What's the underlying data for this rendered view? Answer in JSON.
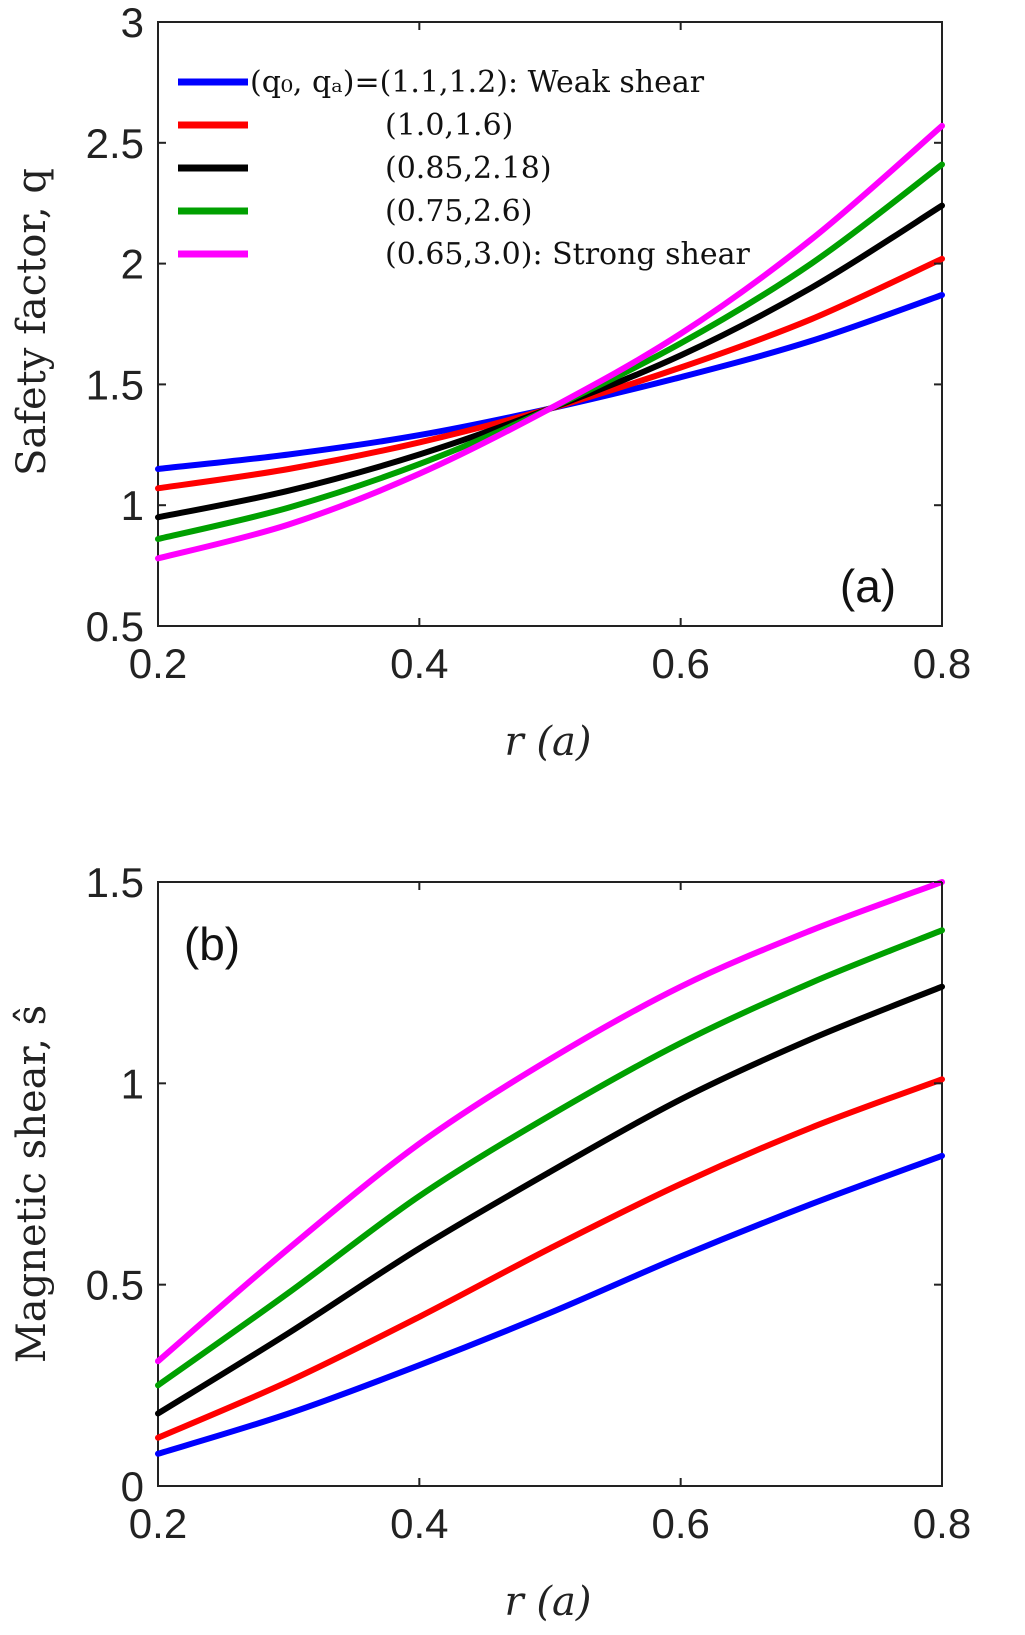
{
  "chart_data": [
    {
      "type": "line",
      "panel_label": "(a)",
      "ylabel": "Safety factor, q",
      "xlabel": "r (a)",
      "xlim": [
        0.2,
        0.8
      ],
      "ylim": [
        0.5,
        3
      ],
      "xticks": [
        "0.2",
        "0.4",
        "0.6",
        "0.8"
      ],
      "yticks": [
        "0.5",
        "1",
        "1.5",
        "2",
        "2.5",
        "3"
      ],
      "legend_position": "top-left",
      "x": [
        0.2,
        0.3,
        0.4,
        0.5,
        0.6,
        0.7,
        0.8
      ],
      "series": [
        {
          "name": "(q₀, qₐ)=(1.1,1.2): Weak shear",
          "color": "#0000ff",
          "values": [
            1.15,
            1.21,
            1.29,
            1.4,
            1.53,
            1.68,
            1.87
          ]
        },
        {
          "name": "(1.0,1.6)",
          "color": "#ff0000",
          "values": [
            1.07,
            1.15,
            1.26,
            1.4,
            1.57,
            1.77,
            2.02
          ]
        },
        {
          "name": "(0.85,2.18)",
          "color": "#000000",
          "values": [
            0.95,
            1.06,
            1.21,
            1.4,
            1.62,
            1.9,
            2.24
          ]
        },
        {
          "name": "(0.75,2.6)",
          "color": "#00a000",
          "values": [
            0.86,
            0.99,
            1.17,
            1.4,
            1.67,
            2.0,
            2.41
          ]
        },
        {
          "name": "(0.65,3.0): Strong shear",
          "color": "#ff00ff",
          "values": [
            0.78,
            0.92,
            1.13,
            1.4,
            1.71,
            2.1,
            2.57
          ]
        }
      ]
    },
    {
      "type": "line",
      "panel_label": "(b)",
      "ylabel": "Magnetic shear, ŝ",
      "xlabel": "r (a)",
      "xlim": [
        0.2,
        0.8
      ],
      "ylim": [
        0,
        1.5
      ],
      "xticks": [
        "0.2",
        "0.4",
        "0.6",
        "0.8"
      ],
      "yticks": [
        "0",
        "0.5",
        "1",
        "1.5"
      ],
      "x": [
        0.2,
        0.3,
        0.4,
        0.5,
        0.6,
        0.7,
        0.8
      ],
      "series": [
        {
          "name": "(1.1,1.2)",
          "color": "#0000ff",
          "values": [
            0.08,
            0.18,
            0.3,
            0.43,
            0.57,
            0.7,
            0.82
          ]
        },
        {
          "name": "(1.0,1.6)",
          "color": "#ff0000",
          "values": [
            0.12,
            0.26,
            0.42,
            0.59,
            0.75,
            0.89,
            1.01
          ]
        },
        {
          "name": "(0.85,2.18)",
          "color": "#000000",
          "values": [
            0.18,
            0.38,
            0.59,
            0.78,
            0.96,
            1.11,
            1.24
          ]
        },
        {
          "name": "(0.75,2.6)",
          "color": "#00a000",
          "values": [
            0.25,
            0.48,
            0.72,
            0.92,
            1.1,
            1.25,
            1.38
          ]
        },
        {
          "name": "(0.65,3.0)",
          "color": "#ff00ff",
          "values": [
            0.31,
            0.59,
            0.85,
            1.06,
            1.24,
            1.38,
            1.5
          ]
        }
      ]
    }
  ]
}
